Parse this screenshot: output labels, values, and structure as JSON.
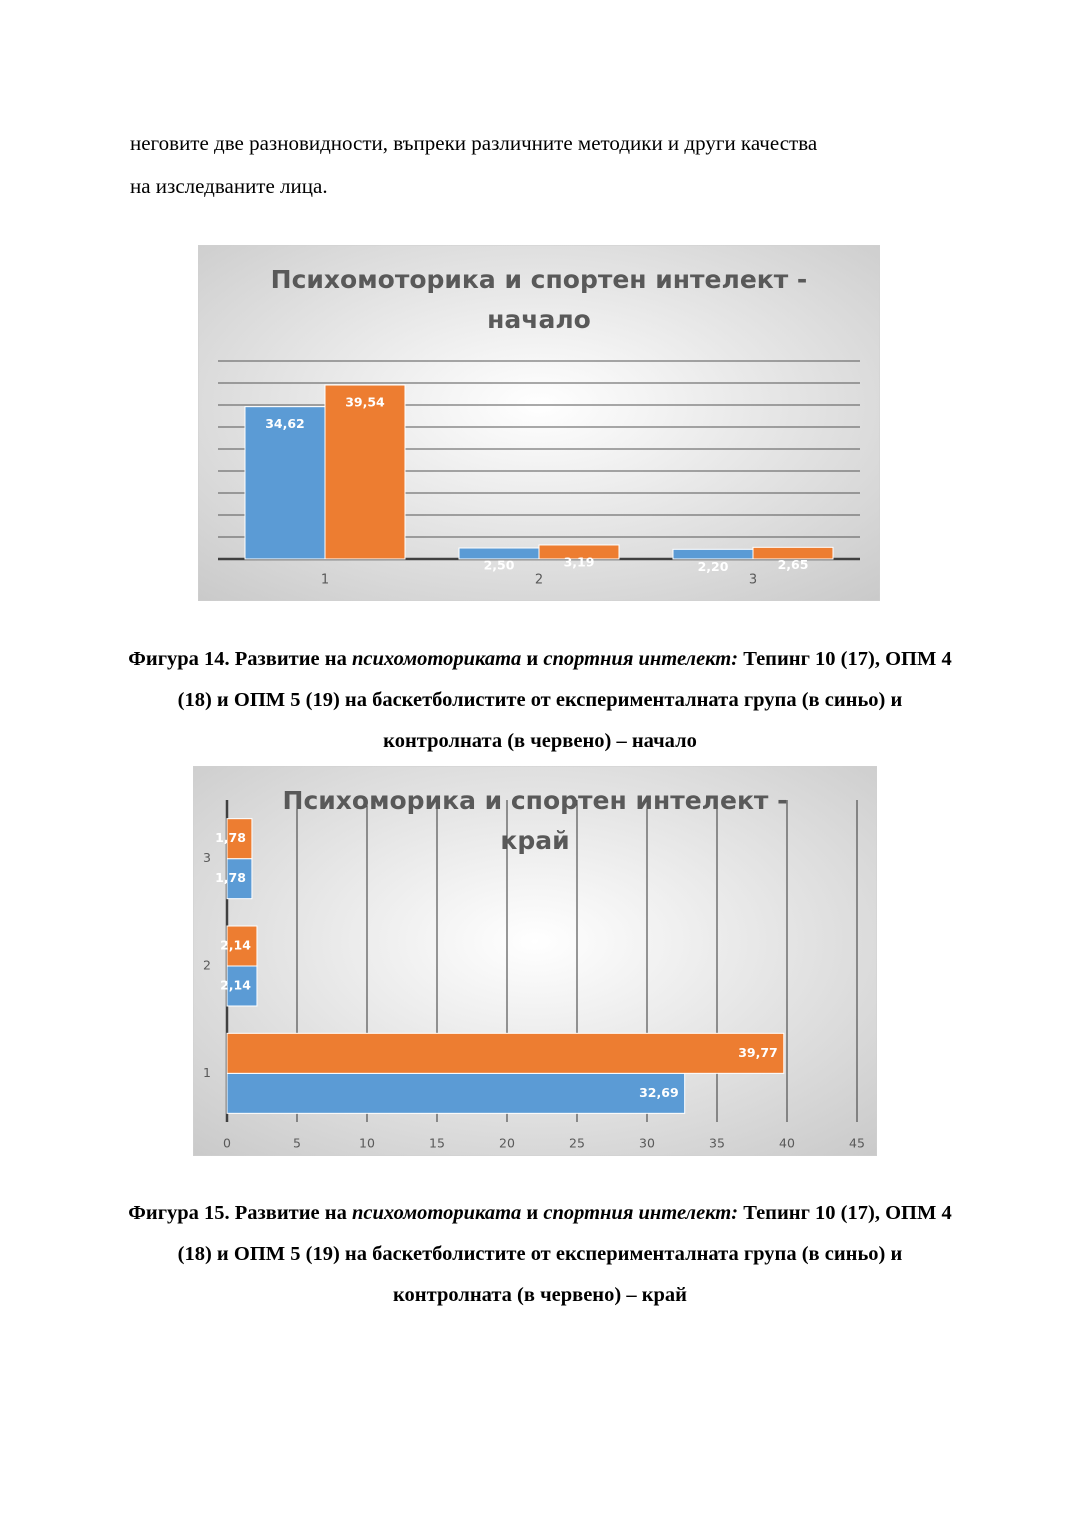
{
  "paragraph": [
    "неговите две разновидности, въпреки различните методики и други качества",
    "на изследваните лица."
  ],
  "chart_data": [
    {
      "type": "bar",
      "title": [
        "Психомоторика и спортен интелект -",
        "начало"
      ],
      "categories": [
        "1",
        "2",
        "3"
      ],
      "series": [
        {
          "color": "#5b9bd5",
          "values": [
            34.62,
            2.5,
            2.2
          ],
          "value_labels": [
            "34,62",
            "2,50",
            "2,20"
          ]
        },
        {
          "color": "#ed7d31",
          "values": [
            39.54,
            3.19,
            2.65
          ],
          "value_labels": [
            "39,54",
            "3,19",
            "2,65"
          ]
        }
      ],
      "ylim": [
        0,
        45
      ],
      "yticks": [
        0,
        5,
        10,
        15,
        20,
        25,
        30,
        35,
        40,
        45
      ],
      "grid": true,
      "tick_labels": false
    },
    {
      "type": "barh",
      "title": [
        "Психоморика и спортен интелект -",
        "край"
      ],
      "categories": [
        "1",
        "2",
        "3"
      ],
      "series": [
        {
          "color": "#5b9bd5",
          "values": [
            32.69,
            2.14,
            1.78
          ],
          "value_labels": [
            "32,69",
            "2,14",
            "1,78"
          ]
        },
        {
          "color": "#ed7d31",
          "values": [
            39.77,
            2.14,
            1.78
          ],
          "value_labels": [
            "39,77",
            "2,14",
            "1,78"
          ]
        }
      ],
      "xlim": [
        0,
        45
      ],
      "xticks": [
        0,
        5,
        10,
        15,
        20,
        25,
        30,
        35,
        40,
        45
      ],
      "grid": true,
      "tick_labels": true
    }
  ],
  "figures": [
    {
      "caption": [
        {
          "text": "Фигура 14. Развитие на ",
          "style": "bold"
        },
        {
          "text": "психомоториката",
          "style": "bold-italic"
        },
        {
          "text": " и ",
          "style": "bold"
        },
        {
          "text": "спортния интелект:",
          "style": "bold-italic"
        },
        {
          "text": " Тепинг 10 (17), ОПМ 4 (18) и ОПМ 5 (19) на  баскетболистите от експерименталната група (в синьо) и контролната (в червено) – начало",
          "style": "bold"
        }
      ]
    },
    {
      "caption": [
        {
          "text": "Фигура 15. Развитие на ",
          "style": "bold"
        },
        {
          "text": "психомоториката",
          "style": "bold-italic"
        },
        {
          "text": " и ",
          "style": "bold"
        },
        {
          "text": "спортния интелект:",
          "style": "bold-italic"
        },
        {
          "text": " Тепинг 10 (17), ОПМ 4 (18) и ОПМ 5 (19) на баскетболистите от експерименталната група (в синьо) и контролната (в червено) – край",
          "style": "bold"
        }
      ]
    }
  ]
}
